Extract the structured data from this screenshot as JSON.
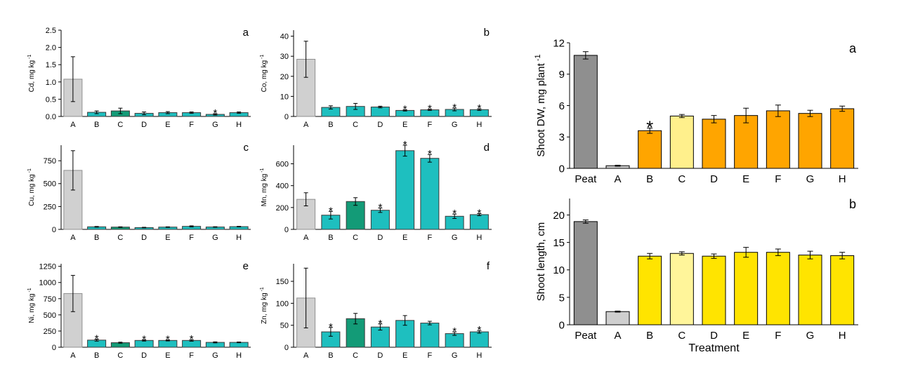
{
  "chart_data": [
    {
      "id": "cd",
      "type": "bar",
      "panel_letter": "a",
      "ylabel": "Cd, mg kg",
      "ylabel_sup": "-1",
      "categories": [
        "A",
        "B",
        "C",
        "D",
        "E",
        "F",
        "G",
        "H"
      ],
      "values": [
        1.08,
        0.12,
        0.16,
        0.09,
        0.11,
        0.11,
        0.06,
        0.11
      ],
      "errors": [
        0.65,
        0.04,
        0.08,
        0.04,
        0.03,
        0.02,
        0.02,
        0.02
      ],
      "significant": [
        false,
        false,
        false,
        false,
        false,
        false,
        true,
        false
      ],
      "ylim": [
        0,
        2.5
      ],
      "yticks": [
        0,
        0.5,
        1,
        1.5,
        2,
        2.5
      ],
      "ytick_labels": [
        "0.0",
        "0.5",
        "1.0",
        "1.5",
        "2.0",
        "2.5"
      ]
    },
    {
      "id": "co",
      "type": "bar",
      "panel_letter": "b",
      "ylabel": "Co, mg kg",
      "ylabel_sup": "-1",
      "categories": [
        "A",
        "B",
        "C",
        "D",
        "E",
        "F",
        "G",
        "H"
      ],
      "values": [
        28.5,
        4.5,
        5.0,
        4.7,
        3.0,
        3.3,
        3.5,
        3.4
      ],
      "errors": [
        9.0,
        0.8,
        1.5,
        0.4,
        0.3,
        0.3,
        0.7,
        0.4
      ],
      "significant": [
        false,
        false,
        false,
        false,
        true,
        true,
        true,
        true
      ],
      "ylim": [
        0,
        43
      ],
      "yticks": [
        0,
        10,
        20,
        30,
        40
      ],
      "ytick_labels": [
        "0",
        "10",
        "20",
        "30",
        "40"
      ]
    },
    {
      "id": "cu",
      "type": "bar",
      "panel_letter": "c",
      "ylabel": "Cu, mg kg",
      "ylabel_sup": "-1",
      "categories": [
        "A",
        "B",
        "C",
        "D",
        "E",
        "F",
        "G",
        "H"
      ],
      "values": [
        645,
        28,
        25,
        20,
        25,
        33,
        26,
        30
      ],
      "errors": [
        215,
        4,
        3,
        3,
        3,
        6,
        3,
        3
      ],
      "significant": [
        false,
        false,
        false,
        false,
        false,
        false,
        false,
        false
      ],
      "ylim": [
        0,
        920
      ],
      "yticks": [
        0,
        250,
        500,
        750
      ],
      "ytick_labels": [
        "0",
        "250",
        "500",
        "750"
      ]
    },
    {
      "id": "mn",
      "type": "bar",
      "panel_letter": "d",
      "ylabel": "Mn, mg kg",
      "ylabel_sup": "-1",
      "categories": [
        "A",
        "B",
        "C",
        "D",
        "E",
        "F",
        "G",
        "H"
      ],
      "values": [
        275,
        130,
        255,
        175,
        720,
        650,
        120,
        135
      ],
      "errors": [
        60,
        35,
        35,
        20,
        50,
        35,
        20,
        10
      ],
      "significant": [
        false,
        true,
        false,
        true,
        true,
        true,
        true,
        true
      ],
      "ylim": [
        0,
        770
      ],
      "yticks": [
        0,
        200,
        400,
        600
      ],
      "ytick_labels": [
        "0",
        "200",
        "400",
        "600"
      ]
    },
    {
      "id": "ni",
      "type": "bar",
      "panel_letter": "e",
      "ylabel": "Ni, mg kg",
      "ylabel_sup": "-1",
      "categories": [
        "A",
        "B",
        "C",
        "D",
        "E",
        "F",
        "G",
        "H"
      ],
      "values": [
        830,
        110,
        70,
        105,
        105,
        105,
        75,
        75
      ],
      "errors": [
        280,
        15,
        8,
        10,
        8,
        12,
        8,
        6
      ],
      "significant": [
        false,
        true,
        false,
        true,
        true,
        true,
        false,
        false
      ],
      "ylim": [
        0,
        1290
      ],
      "yticks": [
        0,
        250,
        500,
        750,
        1000,
        1250
      ],
      "ytick_labels": [
        "0",
        "250",
        "500",
        "750",
        "1000",
        "1250"
      ]
    },
    {
      "id": "zn",
      "type": "bar",
      "panel_letter": "f",
      "ylabel": "Zn, mg kg",
      "ylabel_sup": "-1",
      "categories": [
        "A",
        "B",
        "C",
        "D",
        "E",
        "F",
        "G",
        "H"
      ],
      "values": [
        112,
        35,
        65,
        46,
        61,
        55,
        31,
        35
      ],
      "errors": [
        68,
        10,
        12,
        7,
        11,
        4,
        4,
        3
      ],
      "significant": [
        false,
        true,
        false,
        true,
        false,
        false,
        true,
        true
      ],
      "ylim": [
        0,
        190
      ],
      "yticks": [
        0,
        50,
        100,
        150
      ],
      "ytick_labels": [
        "0",
        "50",
        "100",
        "150"
      ]
    },
    {
      "id": "dw",
      "type": "bar",
      "panel_letter": "a",
      "ylabel": "Shoot DW, mg plant",
      "ylabel_sup": "-1",
      "categories": [
        "Peat",
        "A",
        "B",
        "C",
        "D",
        "E",
        "F",
        "G",
        "H"
      ],
      "values": [
        10.8,
        0.25,
        3.6,
        5.0,
        4.7,
        5.05,
        5.5,
        5.25,
        5.7
      ],
      "errors": [
        0.35,
        0.05,
        0.25,
        0.15,
        0.35,
        0.7,
        0.55,
        0.3,
        0.25
      ],
      "significant": [
        false,
        false,
        true,
        false,
        false,
        false,
        false,
        false,
        false
      ],
      "ylim": [
        0,
        12
      ],
      "yticks": [
        0,
        3,
        6,
        9,
        12
      ],
      "ytick_labels": [
        "0",
        "3",
        "6",
        "9",
        "12"
      ]
    },
    {
      "id": "len",
      "type": "bar",
      "panel_letter": "b",
      "ylabel": "Shoot length, cm",
      "ylabel_sup": "",
      "categories": [
        "Peat",
        "A",
        "B",
        "C",
        "D",
        "E",
        "F",
        "G",
        "H"
      ],
      "values": [
        18.8,
        2.4,
        12.5,
        13.0,
        12.5,
        13.2,
        13.2,
        12.7,
        12.6
      ],
      "errors": [
        0.3,
        0.1,
        0.5,
        0.3,
        0.4,
        0.9,
        0.6,
        0.7,
        0.6
      ],
      "significant": [
        false,
        false,
        false,
        false,
        false,
        false,
        false,
        false,
        false
      ],
      "xlabel": "Treatment",
      "ylim": [
        0,
        23
      ],
      "yticks": [
        0,
        5,
        10,
        15,
        20
      ],
      "ytick_labels": [
        "0",
        "5",
        "10",
        "15",
        "20"
      ]
    }
  ],
  "colors": {
    "left_control": "#d0d0d0",
    "left_control_stroke": "#909090",
    "left_teal": "#1ebfbf",
    "left_green": "#139b77",
    "left_stroke": "#3a3a3a",
    "peat": "#8f8f8f",
    "right_a": "#cfcfcf",
    "dw_orange": "#ffa500",
    "dw_c": "#fff08c",
    "len_yellow": "#ffe400",
    "len_c": "#fff59a",
    "right_stroke": "#000000"
  },
  "significance_mark": "*"
}
